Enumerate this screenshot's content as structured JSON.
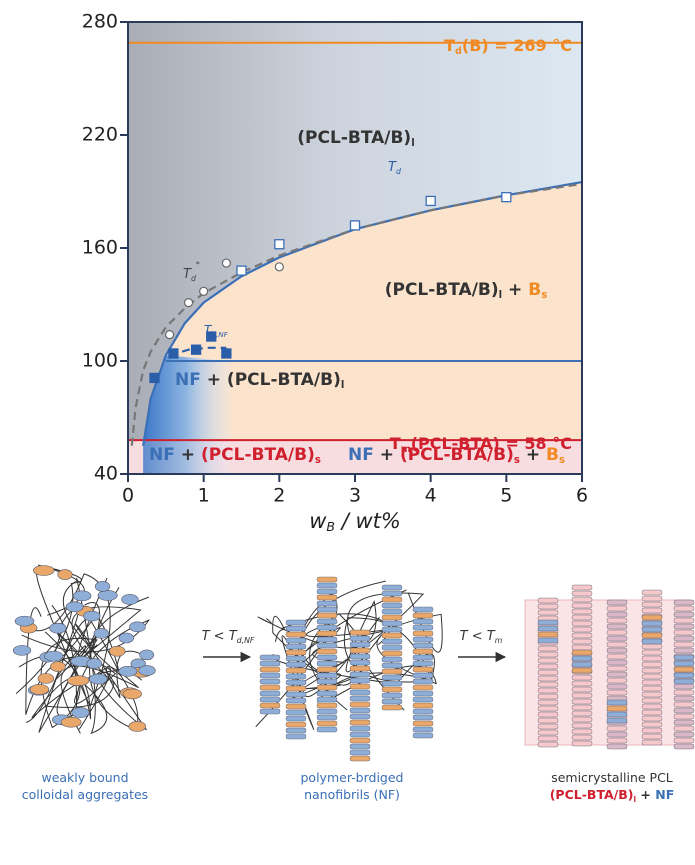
{
  "chart_data": {
    "type": "scatter",
    "xlim": [
      0,
      6
    ],
    "ylim": [
      40,
      280
    ],
    "xticks": [
      0,
      1,
      2,
      3,
      4,
      5,
      6
    ],
    "yticks": [
      40,
      100,
      160,
      220,
      280
    ],
    "x_label": [
      {
        "text": "w",
        "sub": "B"
      },
      {
        "text": " / wt%"
      }
    ],
    "series": [
      {
        "marker": "open-square",
        "color": "#3b6fb6",
        "x": [
          1.5,
          2,
          3,
          4,
          5
        ],
        "values": [
          148,
          162,
          172,
          185,
          187
        ]
      },
      {
        "marker": "open-circle",
        "color": "#666666",
        "x": [
          0.55,
          0.8,
          1,
          1.3,
          2
        ],
        "values": [
          114,
          131,
          137,
          152,
          150
        ]
      },
      {
        "marker": "filled-square",
        "color": "#2a5ea8",
        "x": [
          0.35,
          0.6,
          0.9,
          1.1,
          1.3
        ],
        "values": [
          91,
          104,
          106,
          113,
          104
        ]
      }
    ],
    "curves": [
      {
        "style": "solid",
        "color": "#3b6fb6",
        "x": [
          0.2,
          0.3,
          0.5,
          0.75,
          1,
          1.5,
          2,
          3,
          4,
          5,
          6
        ],
        "values": [
          55,
          80,
          103,
          120,
          131,
          145,
          155,
          170,
          180,
          188,
          195
        ]
      },
      {
        "style": "dashed",
        "color": "#777777",
        "x": [
          0.05,
          0.1,
          0.2,
          0.3,
          0.5,
          0.75,
          1,
          1.5,
          2,
          3,
          4,
          5,
          6
        ],
        "values": [
          55,
          75,
          95,
          105,
          118,
          128,
          136,
          147,
          156,
          170,
          180,
          188,
          194
        ]
      },
      {
        "style": "dashed",
        "color": "#2a5ea8",
        "x": [
          0.55,
          0.8,
          1.05,
          1.3
        ],
        "values": [
          103,
          106,
          107,
          107
        ]
      }
    ],
    "hlines": [
      {
        "value": 269,
        "color": "#f08a24",
        "x": [
          0,
          6
        ]
      },
      {
        "value": 58,
        "color": "#d0202e",
        "x": [
          0,
          6
        ]
      },
      {
        "value": 100,
        "color": "#3b6fb6",
        "x": [
          0.5,
          6
        ]
      }
    ],
    "annotations": [
      [
        {
          "text": "T",
          "sub": "d",
          "color": "#f08a24"
        },
        {
          "text": "(B) = 269 °C",
          "color": "#f08a24"
        }
      ],
      [
        {
          "text": "T",
          "sub": "m",
          "color": "#d0202e"
        },
        {
          "text": "(PCL-BTA) = 58 °C",
          "color": "#d0202e"
        }
      ],
      [
        {
          "text": "(PCL-BTA/B)",
          "sub": "l",
          "color": "#333333"
        }
      ],
      [
        {
          "text": "(PCL-BTA/B)",
          "sub": "l",
          "color": "#333333"
        },
        {
          "text": " + ",
          "color": "#333333"
        },
        {
          "text": "B",
          "sub": "s",
          "color": "#f08a24"
        }
      ],
      [
        {
          "text": "NF",
          "color": "#3b6fb6"
        },
        {
          "text": " + (PCL-BTA/B)",
          "sub": "l",
          "color": "#333333"
        }
      ],
      [
        {
          "text": "NF",
          "color": "#3b6fb6"
        },
        {
          "text": " + ",
          "color": "#333333"
        },
        {
          "text": "(PCL-BTA/B)",
          "sub": "s",
          "color": "#d0202e"
        }
      ],
      [
        {
          "text": "NF",
          "color": "#3b6fb6"
        },
        {
          "text": " + ",
          "color": "#333333"
        },
        {
          "text": "(PCL-BTA/B)",
          "sub": "s",
          "color": "#d0202e"
        },
        {
          "text": " + ",
          "color": "#333333"
        },
        {
          "text": "B",
          "sub": "s",
          "color": "#f08a24"
        }
      ],
      [
        {
          "text": "T",
          "sub": "d",
          "color": "#2a5ea8"
        }
      ],
      [
        {
          "text": "T",
          "sub": "d",
          "sup": "*",
          "color": "#444444"
        }
      ],
      [
        {
          "text": "T",
          "sub": "d,NF",
          "color": "#2a5ea8"
        }
      ]
    ]
  },
  "figure": {
    "arrow_labels": [
      [
        {
          "text": "T < T",
          "sub": "d,NF",
          "color": "#333333"
        }
      ],
      [
        {
          "text": "T < T",
          "sub": "m",
          "color": "#333333"
        }
      ]
    ],
    "captions": [
      [
        [
          {
            "text": "weakly bound",
            "color": "#3b6fb6"
          }
        ],
        [
          {
            "text": "colloidal aggregates",
            "color": "#3b6fb6"
          }
        ]
      ],
      [
        [
          {
            "text": "polymer-brdiged",
            "color": "#3b6fb6"
          }
        ],
        [
          {
            "text": "nanofibrils (",
            "color": "#3b6fb6"
          },
          {
            "text": "NF",
            "color": "#3b6fb6"
          },
          {
            "text": ")",
            "color": "#3b6fb6"
          }
        ]
      ],
      [
        [
          {
            "text": "semicrystalline PCL",
            "color": "#333333"
          }
        ],
        [
          {
            "text": "(PCL-BTA/B)",
            "sub": "l",
            "color": "#d0202e"
          },
          {
            "text": " + ",
            "color": "#333333"
          },
          {
            "text": "NF",
            "color": "#3b6fb6"
          }
        ]
      ]
    ]
  }
}
